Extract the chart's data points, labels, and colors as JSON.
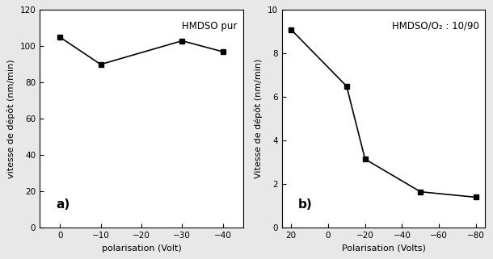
{
  "plot_a": {
    "x": [
      0,
      -10,
      -30,
      -40
    ],
    "y": [
      105,
      90,
      103,
      97
    ],
    "xlabel": "polarisation (Volt)",
    "ylabel": "vitesse de dépôt (nm/min)",
    "label": "HMDSO pur",
    "ylim": [
      0,
      120
    ],
    "xlim": [
      5,
      -45
    ],
    "xticks": [
      0,
      -10,
      -20,
      -30,
      -40
    ],
    "yticks": [
      0,
      20,
      40,
      60,
      80,
      100,
      120
    ],
    "sublabel": "a)"
  },
  "plot_b": {
    "x": [
      20,
      -10,
      -20,
      -50,
      -80
    ],
    "y": [
      9.1,
      6.5,
      3.15,
      1.65,
      1.4
    ],
    "xlabel": "Polarisation (Volts)",
    "ylabel": "Vitesse de dépôt (nm/min)",
    "label": "HMDSO/O₂ : 10/90",
    "ylim": [
      0,
      10
    ],
    "xlim": [
      25,
      -85
    ],
    "xticks": [
      20,
      0,
      -20,
      -40,
      -60,
      -80
    ],
    "yticks": [
      0,
      2,
      4,
      6,
      8,
      10
    ],
    "sublabel": "b)"
  },
  "line_color": "#000000",
  "marker": "s",
  "markersize": 5,
  "linewidth": 1.2,
  "background_color": "#e8e8e8",
  "axes_bg": "#ffffff"
}
